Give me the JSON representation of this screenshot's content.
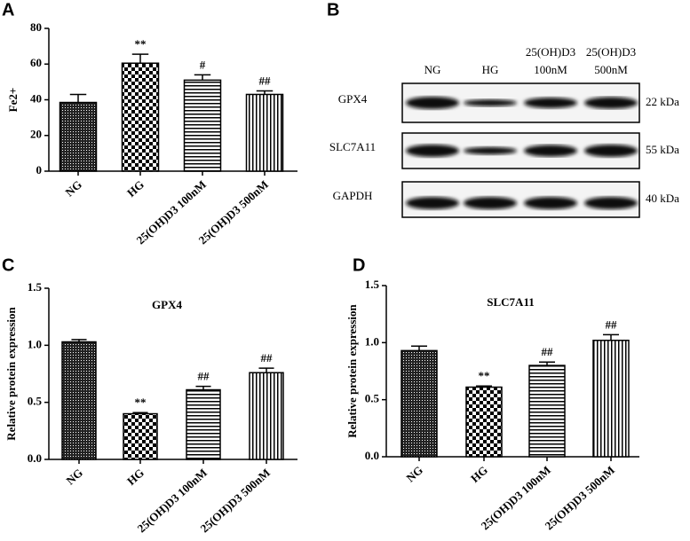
{
  "panel_labels": [
    "A",
    "B",
    "C",
    "D"
  ],
  "chart_data": [
    {
      "type": "bar",
      "ylabel": "Fe2+",
      "categories": [
        "NG",
        "HG",
        "25(OH)D3 100nM",
        "25(OH)D3 500nM"
      ],
      "values": [
        38.5,
        60.5,
        51,
        43
      ],
      "errors": [
        4.5,
        5,
        3,
        2
      ],
      "annotations": [
        null,
        "**",
        "#",
        "##"
      ],
      "color": "#000000",
      "ylim": [
        0,
        80
      ],
      "yticks": [
        0,
        20,
        40,
        60,
        80
      ]
    },
    {
      "type": "bar",
      "title": "GPX4",
      "ylabel": "Relative protein expression",
      "categories": [
        "NG",
        "HG",
        "25(OH)D3 100nM",
        "25(OH)D3 500nM"
      ],
      "values": [
        1.03,
        0.4,
        0.61,
        0.76
      ],
      "errors": [
        0.02,
        0.01,
        0.03,
        0.04
      ],
      "annotations": [
        null,
        "**",
        "##",
        "##"
      ],
      "color": "#000000",
      "ylim": [
        0,
        1.5
      ],
      "yticks": [
        {
          "value": 0,
          "label": "0.0"
        },
        0.5,
        {
          "value": 1,
          "label": "1.0"
        },
        1.5
      ]
    },
    {
      "type": "bar",
      "title": "SLC7A11",
      "ylabel": "Relative protein expression",
      "categories": [
        "NG",
        "HG",
        "25(OH)D3 100nM",
        "25(OH)D3 500nM"
      ],
      "values": [
        0.93,
        0.61,
        0.8,
        1.02
      ],
      "errors": [
        0.04,
        0.01,
        0.03,
        0.05
      ],
      "annotations": [
        null,
        "**",
        "##",
        "##"
      ],
      "color": "#000000",
      "ylim": [
        0,
        1.5
      ],
      "yticks": [
        {
          "value": 0,
          "label": "0.0"
        },
        0.5,
        {
          "value": 1,
          "label": "1.0"
        },
        1.5
      ]
    }
  ],
  "blot": {
    "lanes": [
      [
        "NG"
      ],
      [
        "HG"
      ],
      [
        "25(OH)D3",
        "100nM"
      ],
      [
        "25(OH)D3",
        "500nM"
      ]
    ],
    "rows": [
      {
        "protein": "GPX4",
        "size": "22 kDa"
      },
      {
        "protein": "SLC7A11",
        "size": "55 kDa"
      },
      {
        "protein": "GAPDH",
        "size": "40 kDa"
      }
    ]
  }
}
